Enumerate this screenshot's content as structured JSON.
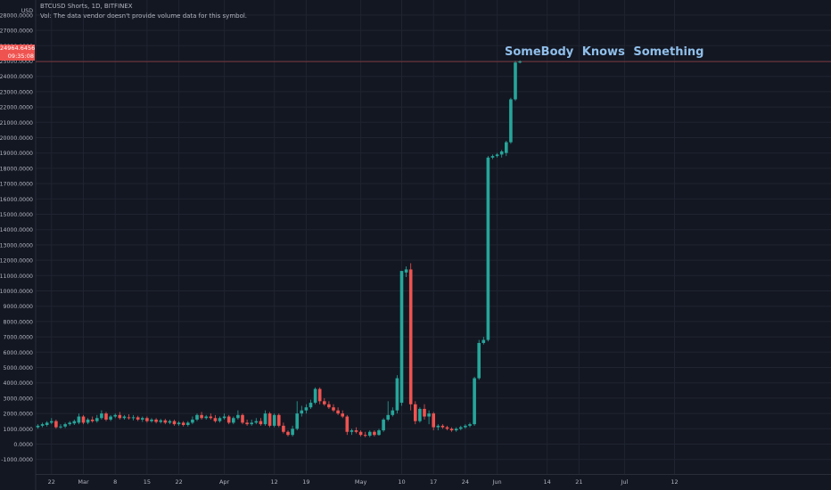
{
  "header": {
    "symbol_line": "BTCUSD Shorts, 1D, BITFINEX",
    "volume_line": "Vol: The data vendor doesn't provide volume data for this symbol.",
    "currency": "USD"
  },
  "price_badge": {
    "price": "24964.6456",
    "countdown": "09:35:08"
  },
  "annotation": "SomeBody  Knows  Something",
  "colors": {
    "background": "#131722",
    "up": "#26a69a",
    "down": "#ef5350",
    "grid": "#1f2430",
    "text": "#b2b5be",
    "annotation": "#90bfea",
    "price_line": "#ef5350"
  },
  "chart_data": {
    "type": "candlestick",
    "ylim": [
      -2000,
      28000
    ],
    "y_ticks": [
      -1000,
      0,
      1000,
      2000,
      3000,
      4000,
      5000,
      6000,
      7000,
      8000,
      9000,
      10000,
      11000,
      12000,
      13000,
      14000,
      15000,
      16000,
      17000,
      18000,
      19000,
      20000,
      21000,
      22000,
      23000,
      24000,
      25000,
      26000,
      27000,
      28000
    ],
    "y_tick_labels": [
      "-1000.0000",
      "0.0000",
      "1000.0000",
      "2000.0000",
      "3000.0000",
      "4000.0000",
      "5000.0000",
      "6000.0000",
      "7000.0000",
      "8000.0000",
      "9000.0000",
      "10000.0000",
      "11000.0000",
      "12000.0000",
      "13000.0000",
      "14000.0000",
      "15000.0000",
      "16000.0000",
      "17000.0000",
      "18000.0000",
      "19000.0000",
      "20000.0000",
      "21000.0000",
      "22000.0000",
      "23000.0000",
      "24000.0000",
      "25000.0000",
      "26000.0000",
      "27000.0000",
      "28000.0000"
    ],
    "x_ticks": [
      {
        "day": 3,
        "label": "22"
      },
      {
        "day": 10,
        "label": "Mar"
      },
      {
        "day": 17,
        "label": "8"
      },
      {
        "day": 24,
        "label": "15"
      },
      {
        "day": 31,
        "label": "22"
      },
      {
        "day": 41,
        "label": "Apr"
      },
      {
        "day": 52,
        "label": "12"
      },
      {
        "day": 59,
        "label": "19"
      },
      {
        "day": 71,
        "label": "May"
      },
      {
        "day": 80,
        "label": "10"
      },
      {
        "day": 87,
        "label": "17"
      },
      {
        "day": 94,
        "label": "24"
      },
      {
        "day": 101,
        "label": "Jun"
      },
      {
        "day": 112,
        "label": "14"
      },
      {
        "day": 119,
        "label": "21"
      },
      {
        "day": 129,
        "label": "Jul"
      },
      {
        "day": 140,
        "label": "12"
      }
    ],
    "last_price": 24964.6456,
    "candles": [
      {
        "day": 0,
        "o": 1100,
        "h": 1300,
        "l": 1000,
        "c": 1200
      },
      {
        "day": 1,
        "o": 1200,
        "h": 1400,
        "l": 1100,
        "c": 1300
      },
      {
        "day": 2,
        "o": 1250,
        "h": 1500,
        "l": 1150,
        "c": 1400
      },
      {
        "day": 3,
        "o": 1400,
        "h": 1700,
        "l": 1300,
        "c": 1500
      },
      {
        "day": 4,
        "o": 1500,
        "h": 1600,
        "l": 1000,
        "c": 1100
      },
      {
        "day": 5,
        "o": 1100,
        "h": 1300,
        "l": 1000,
        "c": 1150
      },
      {
        "day": 6,
        "o": 1150,
        "h": 1400,
        "l": 1050,
        "c": 1300
      },
      {
        "day": 7,
        "o": 1300,
        "h": 1500,
        "l": 1200,
        "c": 1400
      },
      {
        "day": 8,
        "o": 1350,
        "h": 1600,
        "l": 1250,
        "c": 1500
      },
      {
        "day": 9,
        "o": 1400,
        "h": 2000,
        "l": 1300,
        "c": 1800
      },
      {
        "day": 10,
        "o": 1800,
        "h": 1900,
        "l": 1300,
        "c": 1400
      },
      {
        "day": 11,
        "o": 1400,
        "h": 1700,
        "l": 1300,
        "c": 1600
      },
      {
        "day": 12,
        "o": 1600,
        "h": 1800,
        "l": 1400,
        "c": 1500
      },
      {
        "day": 13,
        "o": 1500,
        "h": 1900,
        "l": 1400,
        "c": 1700
      },
      {
        "day": 14,
        "o": 1700,
        "h": 2200,
        "l": 1600,
        "c": 2000
      },
      {
        "day": 15,
        "o": 2000,
        "h": 2100,
        "l": 1500,
        "c": 1600
      },
      {
        "day": 16,
        "o": 1600,
        "h": 1900,
        "l": 1500,
        "c": 1800
      },
      {
        "day": 17,
        "o": 1800,
        "h": 2000,
        "l": 1700,
        "c": 1900
      },
      {
        "day": 18,
        "o": 1900,
        "h": 2100,
        "l": 1600,
        "c": 1700
      },
      {
        "day": 19,
        "o": 1700,
        "h": 1900,
        "l": 1600,
        "c": 1800
      },
      {
        "day": 20,
        "o": 1750,
        "h": 1950,
        "l": 1600,
        "c": 1700
      },
      {
        "day": 21,
        "o": 1700,
        "h": 1900,
        "l": 1550,
        "c": 1750
      },
      {
        "day": 22,
        "o": 1750,
        "h": 1850,
        "l": 1500,
        "c": 1600
      },
      {
        "day": 23,
        "o": 1600,
        "h": 1800,
        "l": 1450,
        "c": 1700
      },
      {
        "day": 24,
        "o": 1700,
        "h": 1800,
        "l": 1400,
        "c": 1500
      },
      {
        "day": 25,
        "o": 1500,
        "h": 1700,
        "l": 1400,
        "c": 1600
      },
      {
        "day": 26,
        "o": 1600,
        "h": 1700,
        "l": 1350,
        "c": 1450
      },
      {
        "day": 27,
        "o": 1450,
        "h": 1650,
        "l": 1350,
        "c": 1550
      },
      {
        "day": 28,
        "o": 1550,
        "h": 1650,
        "l": 1300,
        "c": 1400
      },
      {
        "day": 29,
        "o": 1400,
        "h": 1600,
        "l": 1300,
        "c": 1500
      },
      {
        "day": 30,
        "o": 1500,
        "h": 1600,
        "l": 1200,
        "c": 1300
      },
      {
        "day": 31,
        "o": 1300,
        "h": 1500,
        "l": 1200,
        "c": 1400
      },
      {
        "day": 32,
        "o": 1400,
        "h": 1500,
        "l": 1150,
        "c": 1250
      },
      {
        "day": 33,
        "o": 1250,
        "h": 1500,
        "l": 1150,
        "c": 1400
      },
      {
        "day": 34,
        "o": 1400,
        "h": 1800,
        "l": 1300,
        "c": 1600
      },
      {
        "day": 35,
        "o": 1600,
        "h": 2000,
        "l": 1500,
        "c": 1900
      },
      {
        "day": 36,
        "o": 1900,
        "h": 2100,
        "l": 1600,
        "c": 1700
      },
      {
        "day": 37,
        "o": 1700,
        "h": 1900,
        "l": 1600,
        "c": 1800
      },
      {
        "day": 38,
        "o": 1800,
        "h": 2000,
        "l": 1600,
        "c": 1700
      },
      {
        "day": 39,
        "o": 1700,
        "h": 1900,
        "l": 1400,
        "c": 1500
      },
      {
        "day": 40,
        "o": 1500,
        "h": 1800,
        "l": 1400,
        "c": 1700
      },
      {
        "day": 41,
        "o": 1700,
        "h": 2000,
        "l": 1600,
        "c": 1800
      },
      {
        "day": 42,
        "o": 1800,
        "h": 1900,
        "l": 1300,
        "c": 1400
      },
      {
        "day": 43,
        "o": 1400,
        "h": 1800,
        "l": 1300,
        "c": 1700
      },
      {
        "day": 44,
        "o": 1700,
        "h": 2200,
        "l": 1600,
        "c": 1900
      },
      {
        "day": 45,
        "o": 1900,
        "h": 2000,
        "l": 1300,
        "c": 1400
      },
      {
        "day": 46,
        "o": 1400,
        "h": 1600,
        "l": 1200,
        "c": 1300
      },
      {
        "day": 47,
        "o": 1300,
        "h": 1600,
        "l": 1200,
        "c": 1400
      },
      {
        "day": 48,
        "o": 1400,
        "h": 1700,
        "l": 1300,
        "c": 1500
      },
      {
        "day": 49,
        "o": 1500,
        "h": 1700,
        "l": 1200,
        "c": 1300
      },
      {
        "day": 50,
        "o": 1300,
        "h": 2200,
        "l": 1200,
        "c": 2000
      },
      {
        "day": 51,
        "o": 2000,
        "h": 2100,
        "l": 1100,
        "c": 1200
      },
      {
        "day": 52,
        "o": 1200,
        "h": 2000,
        "l": 1100,
        "c": 1900
      },
      {
        "day": 53,
        "o": 1900,
        "h": 2000,
        "l": 1100,
        "c": 1200
      },
      {
        "day": 54,
        "o": 1200,
        "h": 1400,
        "l": 700,
        "c": 800
      },
      {
        "day": 55,
        "o": 800,
        "h": 900,
        "l": 500,
        "c": 600
      },
      {
        "day": 56,
        "o": 600,
        "h": 1200,
        "l": 500,
        "c": 1000
      },
      {
        "day": 57,
        "o": 1000,
        "h": 2800,
        "l": 900,
        "c": 2000
      },
      {
        "day": 58,
        "o": 2000,
        "h": 2500,
        "l": 1800,
        "c": 2200
      },
      {
        "day": 59,
        "o": 2200,
        "h": 2600,
        "l": 2000,
        "c": 2400
      },
      {
        "day": 60,
        "o": 2400,
        "h": 2900,
        "l": 2300,
        "c": 2700
      },
      {
        "day": 61,
        "o": 2700,
        "h": 3700,
        "l": 2600,
        "c": 3600
      },
      {
        "day": 62,
        "o": 3600,
        "h": 3700,
        "l": 2600,
        "c": 2800
      },
      {
        "day": 63,
        "o": 2800,
        "h": 3000,
        "l": 2500,
        "c": 2600
      },
      {
        "day": 64,
        "o": 2600,
        "h": 2800,
        "l": 2300,
        "c": 2400
      },
      {
        "day": 65,
        "o": 2400,
        "h": 2600,
        "l": 2100,
        "c": 2200
      },
      {
        "day": 66,
        "o": 2200,
        "h": 2400,
        "l": 1900,
        "c": 2000
      },
      {
        "day": 67,
        "o": 2000,
        "h": 2200,
        "l": 1700,
        "c": 1800
      },
      {
        "day": 68,
        "o": 1800,
        "h": 1900,
        "l": 600,
        "c": 800
      },
      {
        "day": 69,
        "o": 800,
        "h": 1000,
        "l": 600,
        "c": 900
      },
      {
        "day": 70,
        "o": 900,
        "h": 1100,
        "l": 700,
        "c": 800
      },
      {
        "day": 71,
        "o": 800,
        "h": 900,
        "l": 500,
        "c": 600
      },
      {
        "day": 72,
        "o": 600,
        "h": 800,
        "l": 450,
        "c": 550
      },
      {
        "day": 73,
        "o": 550,
        "h": 900,
        "l": 450,
        "c": 800
      },
      {
        "day": 74,
        "o": 800,
        "h": 900,
        "l": 500,
        "c": 600
      },
      {
        "day": 75,
        "o": 600,
        "h": 1000,
        "l": 550,
        "c": 900
      },
      {
        "day": 76,
        "o": 900,
        "h": 1700,
        "l": 800,
        "c": 1600
      },
      {
        "day": 77,
        "o": 1600,
        "h": 2800,
        "l": 1500,
        "c": 1900
      },
      {
        "day": 78,
        "o": 1900,
        "h": 2400,
        "l": 1800,
        "c": 2200
      },
      {
        "day": 79,
        "o": 2200,
        "h": 4500,
        "l": 2000,
        "c": 4300
      },
      {
        "day": 80,
        "o": 2700,
        "h": 11300,
        "l": 2500,
        "c": 11300
      },
      {
        "day": 81,
        "o": 11200,
        "h": 11600,
        "l": 10900,
        "c": 11400
      },
      {
        "day": 82,
        "o": 11400,
        "h": 11800,
        "l": 2200,
        "c": 2600
      },
      {
        "day": 83,
        "o": 2600,
        "h": 2800,
        "l": 1300,
        "c": 1500
      },
      {
        "day": 84,
        "o": 1500,
        "h": 2400,
        "l": 1400,
        "c": 2300
      },
      {
        "day": 85,
        "o": 2300,
        "h": 2600,
        "l": 1600,
        "c": 1800
      },
      {
        "day": 86,
        "o": 1800,
        "h": 2200,
        "l": 1300,
        "c": 2000
      },
      {
        "day": 87,
        "o": 2000,
        "h": 2100,
        "l": 900,
        "c": 1100
      },
      {
        "day": 88,
        "o": 1100,
        "h": 1300,
        "l": 900,
        "c": 1200
      },
      {
        "day": 89,
        "o": 1200,
        "h": 1300,
        "l": 1000,
        "c": 1100
      },
      {
        "day": 90,
        "o": 1100,
        "h": 1200,
        "l": 900,
        "c": 1000
      },
      {
        "day": 91,
        "o": 1000,
        "h": 1100,
        "l": 800,
        "c": 900
      },
      {
        "day": 92,
        "o": 900,
        "h": 1100,
        "l": 800,
        "c": 1000
      },
      {
        "day": 93,
        "o": 1000,
        "h": 1200,
        "l": 900,
        "c": 1100
      },
      {
        "day": 94,
        "o": 1100,
        "h": 1300,
        "l": 1000,
        "c": 1200
      },
      {
        "day": 95,
        "o": 1200,
        "h": 1400,
        "l": 1100,
        "c": 1300
      },
      {
        "day": 96,
        "o": 1300,
        "h": 4400,
        "l": 1200,
        "c": 4300
      },
      {
        "day": 97,
        "o": 4300,
        "h": 6800,
        "l": 4200,
        "c": 6600
      },
      {
        "day": 98,
        "o": 6600,
        "h": 7000,
        "l": 6500,
        "c": 6800
      },
      {
        "day": 99,
        "o": 6800,
        "h": 18800,
        "l": 6700,
        "c": 18700
      },
      {
        "day": 100,
        "o": 18700,
        "h": 18900,
        "l": 18600,
        "c": 18800
      },
      {
        "day": 101,
        "o": 18800,
        "h": 19000,
        "l": 18700,
        "c": 18900
      },
      {
        "day": 102,
        "o": 18900,
        "h": 19200,
        "l": 18700,
        "c": 19100
      },
      {
        "day": 103,
        "o": 19000,
        "h": 19800,
        "l": 18800,
        "c": 19700
      },
      {
        "day": 104,
        "o": 19700,
        "h": 22600,
        "l": 19600,
        "c": 22500
      },
      {
        "day": 105,
        "o": 22500,
        "h": 25000,
        "l": 22400,
        "c": 24900
      },
      {
        "day": 106,
        "o": 24900,
        "h": 25050,
        "l": 24850,
        "c": 24964
      }
    ]
  }
}
